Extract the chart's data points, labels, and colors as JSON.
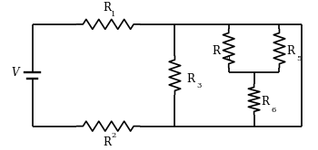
{
  "bg_color": "#ffffff",
  "line_color": "#000000",
  "line_width": 1.2,
  "text_color": "#000000",
  "font_size": 8.5,
  "figsize": [
    3.5,
    1.66
  ],
  "dpi": 100,
  "xlim": [
    0,
    10
  ],
  "ylim": [
    0,
    5
  ]
}
